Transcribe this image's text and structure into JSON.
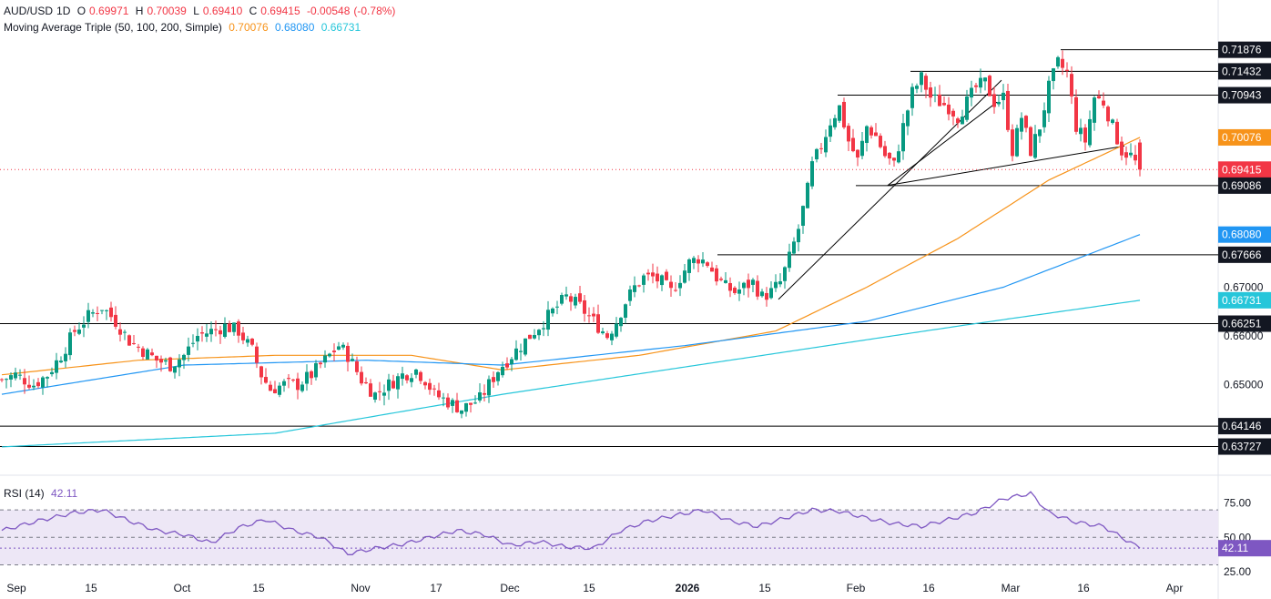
{
  "header": {
    "symbol": "AUD/USD",
    "interval": "1D",
    "ohlc": {
      "open_label": "O",
      "open": "0.69971",
      "high_label": "H",
      "high": "0.70039",
      "low_label": "L",
      "low": "0.69410",
      "close_label": "C",
      "close": "0.69415",
      "change": "-0.00548",
      "change_pct": "(-0.78%)"
    },
    "ma_label": "Moving Average Triple (50, 100, 200, Simple)",
    "ma_values": [
      "0.70076",
      "0.68080",
      "0.66731"
    ]
  },
  "rsi_header": {
    "label": "RSI (14)",
    "value": "42.11"
  },
  "colors": {
    "up": "#089981",
    "down": "#f23645",
    "ma50": "#f7931a",
    "ma100": "#2196f3",
    "ma200": "#26c6da",
    "rsi": "#7e57c2",
    "rsi_band": "#ede7f6"
  },
  "chart_data": [
    {
      "type": "candlestick",
      "x_start": "2025-09-01",
      "x_end": "2026-03-24",
      "ylim": [
        0.6355,
        0.7215
      ],
      "x_ticks": [
        "Sep",
        "15",
        "Oct",
        "15",
        "Nov",
        "17",
        "Dec",
        "15",
        "2026",
        "15",
        "Feb",
        "16",
        "Mar",
        "16",
        "Apr"
      ],
      "y_ticks": [
        "0.65000",
        "0.66000",
        "0.67000"
      ],
      "price_labels": [
        {
          "value": 0.71876,
          "label": "0.71876",
          "kind": "line"
        },
        {
          "value": 0.71432,
          "label": "0.71432",
          "kind": "line"
        },
        {
          "value": 0.70943,
          "label": "0.70943",
          "kind": "line"
        },
        {
          "value": 0.70076,
          "label": "0.70076",
          "kind": "ma50"
        },
        {
          "value": 0.69415,
          "label": "0.69415",
          "kind": "last"
        },
        {
          "value": 0.69086,
          "label": "0.69086",
          "kind": "line"
        },
        {
          "value": 0.6808,
          "label": "0.68080",
          "kind": "ma100"
        },
        {
          "value": 0.67666,
          "label": "0.67666",
          "kind": "line"
        },
        {
          "value": 0.66731,
          "label": "0.66731",
          "kind": "ma200"
        },
        {
          "value": 0.66251,
          "label": "0.66251",
          "kind": "line"
        },
        {
          "value": 0.64146,
          "label": "0.64146",
          "kind": "line"
        },
        {
          "value": 0.63727,
          "label": "0.63727",
          "kind": "line"
        }
      ],
      "close_anchors": [
        [
          0,
          0.651
        ],
        [
          3,
          0.652
        ],
        [
          7,
          0.65
        ],
        [
          10,
          0.652
        ],
        [
          13,
          0.656
        ],
        [
          16,
          0.661
        ],
        [
          19,
          0.664
        ],
        [
          22,
          0.666
        ],
        [
          25,
          0.663
        ],
        [
          28,
          0.659
        ],
        [
          31,
          0.657
        ],
        [
          34,
          0.655
        ],
        [
          37,
          0.654
        ],
        [
          40,
          0.656
        ],
        [
          43,
          0.66
        ],
        [
          46,
          0.661
        ],
        [
          49,
          0.662
        ],
        [
          52,
          0.661
        ],
        [
          55,
          0.657
        ],
        [
          57,
          0.652
        ],
        [
          59,
          0.649
        ],
        [
          62,
          0.65
        ],
        [
          65,
          0.65
        ],
        [
          68,
          0.652
        ],
        [
          70,
          0.654
        ],
        [
          72,
          0.656
        ],
        [
          74,
          0.658
        ],
        [
          76,
          0.656
        ],
        [
          79,
          0.651
        ],
        [
          82,
          0.648
        ],
        [
          85,
          0.65
        ],
        [
          88,
          0.652
        ],
        [
          91,
          0.653
        ],
        [
          93,
          0.651
        ],
        [
          95,
          0.648
        ],
        [
          97,
          0.647
        ],
        [
          99,
          0.646
        ],
        [
          101,
          0.645
        ],
        [
          103,
          0.646
        ],
        [
          105,
          0.647
        ],
        [
          107,
          0.65
        ],
        [
          109,
          0.653
        ],
        [
          112,
          0.656
        ],
        [
          115,
          0.659
        ],
        [
          118,
          0.662
        ],
        [
          121,
          0.665
        ],
        [
          124,
          0.668
        ],
        [
          127,
          0.666
        ],
        [
          130,
          0.663
        ],
        [
          133,
          0.66
        ],
        [
          135,
          0.663
        ],
        [
          137,
          0.667
        ],
        [
          139,
          0.67
        ],
        [
          141,
          0.672
        ],
        [
          143,
          0.672
        ],
        [
          145,
          0.671
        ],
        [
          147,
          0.669
        ],
        [
          149,
          0.672
        ],
        [
          151,
          0.675
        ],
        [
          153,
          0.676
        ],
        [
          155,
          0.675
        ],
        [
          157,
          0.672
        ],
        [
          159,
          0.67
        ],
        [
          161,
          0.669
        ],
        [
          163,
          0.67
        ],
        [
          165,
          0.671
        ],
        [
          167,
          0.668
        ],
        [
          169,
          0.669
        ],
        [
          171,
          0.671
        ],
        [
          173,
          0.676
        ],
        [
          175,
          0.682
        ],
        [
          177,
          0.69
        ],
        [
          178,
          0.695
        ],
        [
          180,
          0.699
        ],
        [
          182,
          0.704
        ],
        [
          184,
          0.707
        ],
        [
          186,
          0.7
        ],
        [
          188,
          0.696
        ],
        [
          190,
          0.703
        ],
        [
          192,
          0.701
        ],
        [
          194,
          0.697
        ],
        [
          196,
          0.695
        ],
        [
          198,
          0.703
        ],
        [
          200,
          0.71
        ],
        [
          202,
          0.713
        ],
        [
          204,
          0.709
        ],
        [
          206,
          0.708
        ],
        [
          208,
          0.707
        ],
        [
          210,
          0.705
        ],
        [
          212,
          0.708
        ],
        [
          214,
          0.711
        ],
        [
          216,
          0.712
        ],
        [
          218,
          0.708
        ],
        [
          220,
          0.709
        ],
        [
          222,
          0.698
        ],
        [
          224,
          0.705
        ],
        [
          226,
          0.698
        ],
        [
          228,
          0.703
        ],
        [
          230,
          0.711
        ],
        [
          232,
          0.716
        ],
        [
          234,
          0.714
        ],
        [
          236,
          0.703
        ],
        [
          238,
          0.7
        ],
        [
          240,
          0.709
        ],
        [
          242,
          0.708
        ],
        [
          244,
          0.703
        ],
        [
          246,
          0.698
        ],
        [
          248,
          0.697
        ],
        [
          250,
          0.69415
        ]
      ],
      "series": [
        {
          "name": "MA 50",
          "values_anchor": [
            [
              0,
              0.652
            ],
            [
              30,
              0.655
            ],
            [
              60,
              0.656
            ],
            [
              90,
              0.656
            ],
            [
              110,
              0.653
            ],
            [
              140,
              0.656
            ],
            [
              170,
              0.661
            ],
            [
              190,
              0.67
            ],
            [
              210,
              0.68
            ],
            [
              230,
              0.692
            ],
            [
              250,
              0.70076
            ]
          ]
        },
        {
          "name": "MA 100",
          "values_anchor": [
            [
              0,
              0.648
            ],
            [
              40,
              0.654
            ],
            [
              80,
              0.655
            ],
            [
              110,
              0.654
            ],
            [
              150,
              0.658
            ],
            [
              190,
              0.663
            ],
            [
              220,
              0.67
            ],
            [
              250,
              0.6808
            ]
          ]
        },
        {
          "name": "MA 200",
          "values_anchor": [
            [
              0,
              0.6372
            ],
            [
              60,
              0.64
            ],
            [
              110,
              0.648
            ],
            [
              160,
              0.655
            ],
            [
              210,
              0.662
            ],
            [
              250,
              0.66731
            ]
          ]
        }
      ]
    },
    {
      "type": "line",
      "name": "RSI (14)",
      "ylim": [
        25,
        80
      ],
      "y_ticks": [
        "75.00",
        "50.00",
        "25.00"
      ],
      "bands": {
        "upper": 70,
        "middle": 50,
        "lower": 30
      },
      "last": "42.11",
      "values_anchor": [
        [
          0,
          55
        ],
        [
          8,
          62
        ],
        [
          16,
          68
        ],
        [
          22,
          70
        ],
        [
          28,
          62
        ],
        [
          34,
          55
        ],
        [
          40,
          52
        ],
        [
          46,
          46
        ],
        [
          52,
          57
        ],
        [
          58,
          63
        ],
        [
          64,
          55
        ],
        [
          70,
          50
        ],
        [
          76,
          38
        ],
        [
          82,
          42
        ],
        [
          88,
          45
        ],
        [
          94,
          50
        ],
        [
          100,
          55
        ],
        [
          106,
          52
        ],
        [
          112,
          44
        ],
        [
          118,
          47
        ],
        [
          124,
          43
        ],
        [
          130,
          42
        ],
        [
          136,
          55
        ],
        [
          142,
          62
        ],
        [
          148,
          66
        ],
        [
          154,
          70
        ],
        [
          160,
          62
        ],
        [
          166,
          58
        ],
        [
          172,
          64
        ],
        [
          178,
          70
        ],
        [
          184,
          69
        ],
        [
          190,
          64
        ],
        [
          196,
          60
        ],
        [
          202,
          58
        ],
        [
          208,
          63
        ],
        [
          214,
          68
        ],
        [
          220,
          78
        ],
        [
          226,
          82
        ],
        [
          230,
          68
        ],
        [
          236,
          61
        ],
        [
          242,
          58
        ],
        [
          248,
          46
        ],
        [
          250,
          42.11
        ]
      ]
    }
  ]
}
